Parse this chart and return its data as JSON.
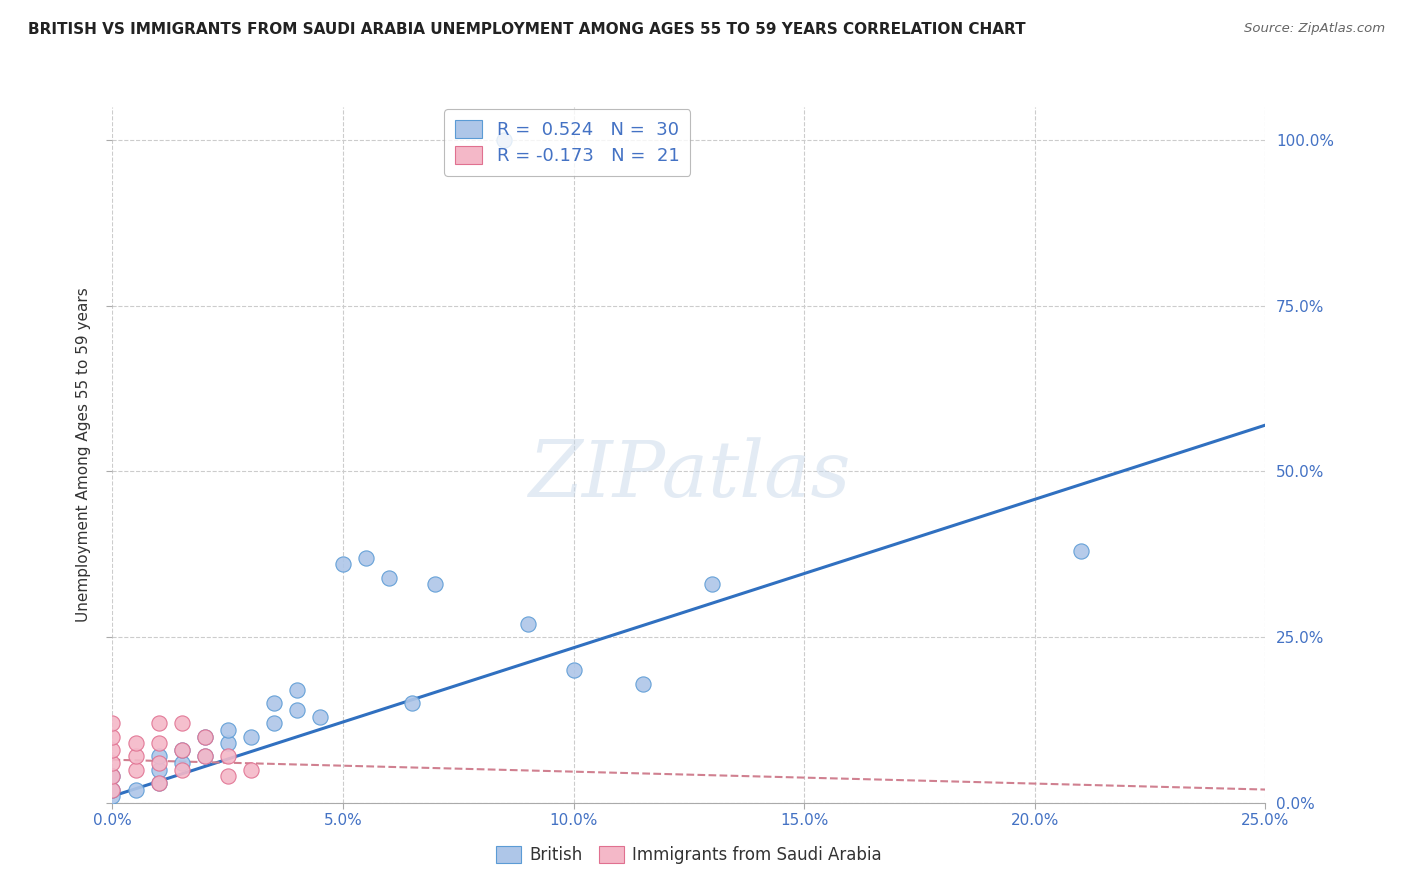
{
  "title": "BRITISH VS IMMIGRANTS FROM SAUDI ARABIA UNEMPLOYMENT AMONG AGES 55 TO 59 YEARS CORRELATION CHART",
  "source": "Source: ZipAtlas.com",
  "ylabel": "Unemployment Among Ages 55 to 59 years",
  "watermark": "ZIPatlas",
  "xlim": [
    0.0,
    0.25
  ],
  "ylim": [
    0.0,
    1.05
  ],
  "xticks": [
    0.0,
    0.05,
    0.1,
    0.15,
    0.2,
    0.25
  ],
  "xtick_labels": [
    "0.0%",
    "5.0%",
    "10.0%",
    "15.0%",
    "20.0%",
    "25.0%"
  ],
  "yticks": [
    0.0,
    0.25,
    0.5,
    0.75,
    1.0
  ],
  "ytick_labels_right": [
    "0.0%",
    "25.0%",
    "50.0%",
    "75.0%",
    "100.0%"
  ],
  "british_color": "#aec6e8",
  "british_edge_color": "#5b9bd5",
  "saudi_color": "#f4b8c8",
  "saudi_edge_color": "#e07090",
  "trendline_british_color": "#3070c0",
  "trendline_saudi_color": "#d08090",
  "legend_R_british": "R =  0.524",
  "legend_N_british": "N =  30",
  "legend_R_saudi": "R = -0.173",
  "legend_N_saudi": "N =  21",
  "british_x": [
    0.0,
    0.0,
    0.0,
    0.005,
    0.01,
    0.01,
    0.01,
    0.015,
    0.015,
    0.02,
    0.02,
    0.025,
    0.025,
    0.03,
    0.035,
    0.035,
    0.04,
    0.04,
    0.045,
    0.05,
    0.055,
    0.06,
    0.065,
    0.07,
    0.09,
    0.1,
    0.115,
    0.13,
    0.21
  ],
  "british_y": [
    0.01,
    0.02,
    0.04,
    0.02,
    0.03,
    0.05,
    0.07,
    0.06,
    0.08,
    0.07,
    0.1,
    0.09,
    0.11,
    0.1,
    0.12,
    0.15,
    0.14,
    0.17,
    0.13,
    0.36,
    0.37,
    0.34,
    0.15,
    0.33,
    0.27,
    0.2,
    0.18,
    0.33,
    0.38
  ],
  "outlier_british_x": [
    0.085
  ],
  "outlier_british_y": [
    1.0
  ],
  "saudi_x": [
    0.0,
    0.0,
    0.0,
    0.0,
    0.0,
    0.0,
    0.005,
    0.005,
    0.005,
    0.01,
    0.01,
    0.01,
    0.01,
    0.015,
    0.015,
    0.015,
    0.02,
    0.02,
    0.025,
    0.025,
    0.03
  ],
  "saudi_y": [
    0.02,
    0.04,
    0.06,
    0.08,
    0.1,
    0.12,
    0.05,
    0.07,
    0.09,
    0.03,
    0.06,
    0.09,
    0.12,
    0.05,
    0.08,
    0.12,
    0.07,
    0.1,
    0.04,
    0.07,
    0.05
  ],
  "british_trendline_x": [
    0.0,
    0.25
  ],
  "british_trendline_y": [
    0.01,
    0.57
  ],
  "saudi_trendline_x": [
    0.0,
    0.25
  ],
  "saudi_trendline_y": [
    0.065,
    0.02
  ],
  "background_color": "#ffffff",
  "grid_color": "#cccccc"
}
